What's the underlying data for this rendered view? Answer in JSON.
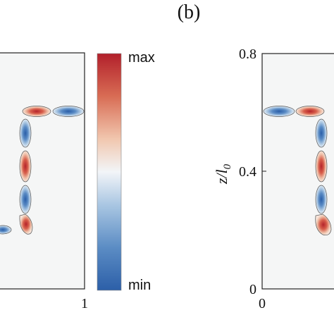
{
  "panel_label": "(b)",
  "colorbar": {
    "max_label": "max",
    "min_label": "min",
    "colors": [
      "#2c5fa8",
      "#5b8cc4",
      "#a9c6e2",
      "#f2f5f8",
      "#f1c6ae",
      "#d86c54",
      "#b2202b"
    ]
  },
  "left_panel": {
    "x_tick_right": "1"
  },
  "right_panel": {
    "y_label": "z/l",
    "y_label_sub": "0",
    "y_ticks": [
      "0.8",
      "0.4",
      "0"
    ],
    "x_tick_left": "0"
  },
  "colors": {
    "red_lobe": "#c8463a",
    "blue_lobe": "#3a6fb0",
    "background": "#f4f5f6"
  }
}
